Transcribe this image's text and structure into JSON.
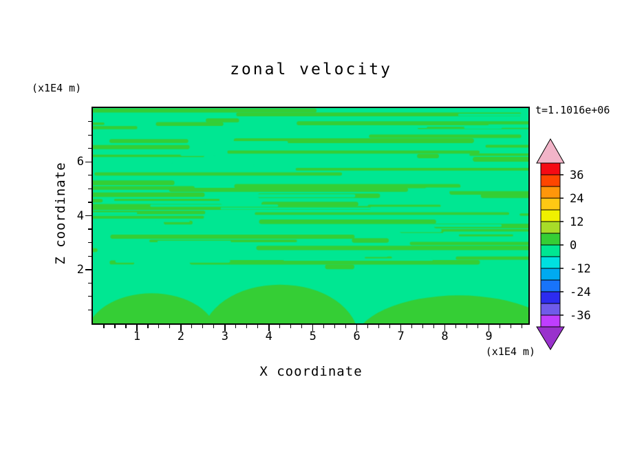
{
  "title": "zonal velocity",
  "annotations": {
    "time": "t=1.1016e+06"
  },
  "x_axis": {
    "label": "X coordinate",
    "unit": "(x1E4 m)",
    "range": [
      0,
      9.9
    ],
    "major_ticks": [
      1,
      2,
      3,
      4,
      5,
      6,
      7,
      8,
      9
    ],
    "minor_step": 0.25
  },
  "y_axis": {
    "label": "Z coordinate",
    "unit": "(x1E4 m)",
    "range": [
      0,
      8
    ],
    "major_ticks": [
      2,
      4,
      6
    ],
    "minor_step": 0.5
  },
  "colorbar": {
    "tick_labels": [
      36,
      24,
      12,
      0,
      -12,
      -24,
      -36
    ],
    "levels": [
      -42,
      -36,
      -30,
      -24,
      -18,
      -12,
      -6,
      0,
      6,
      12,
      18,
      24,
      30,
      36,
      42
    ],
    "segment_colors_bottom_to_top": [
      "#BF3EFF",
      "#6F5BEA",
      "#2C2CF0",
      "#1874FA",
      "#00AAF0",
      "#00E0E0",
      "#00E792",
      "#35CE35",
      "#A8DC28",
      "#F0F000",
      "#FFC814",
      "#FF960A",
      "#FF4600",
      "#F50A14"
    ],
    "top_arrow_color": "#F2B4C8",
    "bottom_arrow_color": "#9932CC"
  },
  "field": {
    "background_color": "#00E792",
    "streak_color": "#35CE35"
  },
  "chart_data": {
    "type": "heatmap",
    "subtype": "filled-contour",
    "title": "zonal velocity",
    "xlabel": "X coordinate (x1E4 m)",
    "ylabel": "Z coordinate (x1E4 m)",
    "time_annotation": "t=1.1016e+06",
    "x_range": [
      0,
      9.9
    ],
    "y_range": [
      0,
      8
    ],
    "x_tick_labels": [
      1,
      2,
      3,
      4,
      5,
      6,
      7,
      8,
      9
    ],
    "y_tick_labels": [
      2,
      4,
      6
    ],
    "contour_levels": [
      -42,
      -36,
      -30,
      -24,
      -18,
      -12,
      -6,
      0,
      6,
      12,
      18,
      24,
      30,
      36,
      42
    ],
    "colorbar_tick_labels": [
      36,
      24,
      12,
      0,
      -12,
      -24,
      -36
    ],
    "legend_position": "right-colorbar-with-arrow-ends",
    "grid": false,
    "visible_value_bands": [
      {
        "value_range": [
          -6,
          0
        ],
        "color": "#00E792",
        "description": "spring-green field; dominant below z=2 and interleaved with stripes above"
      },
      {
        "value_range": [
          0,
          6
        ],
        "color": "#35CE35",
        "description": "green horizontal streaks concentrated between z=2 and the top of the domain; a few broad green patches along the bottom edge"
      }
    ]
  }
}
